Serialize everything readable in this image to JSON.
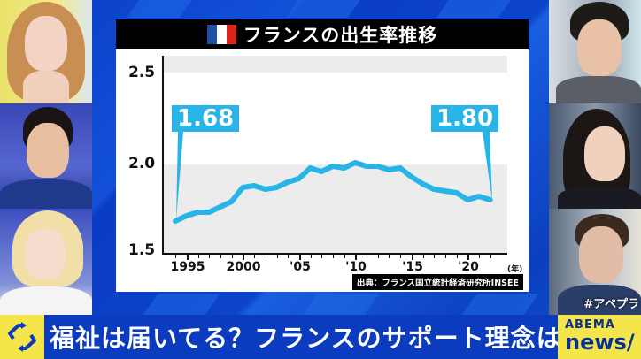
{
  "chart": {
    "title": "フランスの出生率推移",
    "flag_colors": [
      "#1d4fa8",
      "#ffffff",
      "#d8261c"
    ],
    "line_color": "#28b4e6",
    "y_labels": [
      "2.5",
      "2.0",
      "1.5"
    ],
    "x_labels": [
      "1995",
      "2000",
      "'05",
      "'10",
      "'15",
      "'20"
    ],
    "x_unit": "(年)",
    "callout_start": "1.68",
    "callout_end": "1.80",
    "source": "出典：フランス国立統計経済研究所INSEE"
  },
  "chart_data": {
    "type": "line",
    "title": "フランスの出生率推移",
    "xlabel": "(年)",
    "ylabel": "",
    "ylim": [
      1.5,
      2.6
    ],
    "yticks": [
      1.5,
      2.0,
      2.5
    ],
    "xticks": [
      "1995",
      "2000",
      "'05",
      "'10",
      "'15",
      "'20"
    ],
    "x": [
      1994,
      1995,
      1996,
      1997,
      1998,
      1999,
      2000,
      2001,
      2002,
      2003,
      2004,
      2005,
      2006,
      2007,
      2008,
      2009,
      2010,
      2011,
      2012,
      2013,
      2014,
      2015,
      2016,
      2017,
      2018,
      2019,
      2020,
      2021,
      2022
    ],
    "series": [
      {
        "name": "出生率",
        "values": [
          1.68,
          1.71,
          1.73,
          1.73,
          1.76,
          1.79,
          1.87,
          1.88,
          1.86,
          1.87,
          1.9,
          1.92,
          1.98,
          1.96,
          1.99,
          1.98,
          2.01,
          1.99,
          1.99,
          1.97,
          1.98,
          1.93,
          1.89,
          1.86,
          1.85,
          1.84,
          1.8,
          1.82,
          1.8
        ]
      }
    ],
    "annotations": [
      {
        "x": 1994,
        "label": "1.68"
      },
      {
        "x": 2022,
        "label": "1.80"
      }
    ],
    "background_bands": [
      [
        1.5,
        2.0
      ],
      [
        2.5,
        2.6
      ]
    ],
    "source": "出典：フランス国立統計経済研究所INSEE"
  },
  "ticker": {
    "text": "福祉は届いてる？フランスのサポート理念は",
    "icon": "refresh-arrows-icon"
  },
  "brand": {
    "top": "ABEMA",
    "bottom": "news/"
  },
  "overlay": {
    "hashtag": "#アベプラ"
  }
}
